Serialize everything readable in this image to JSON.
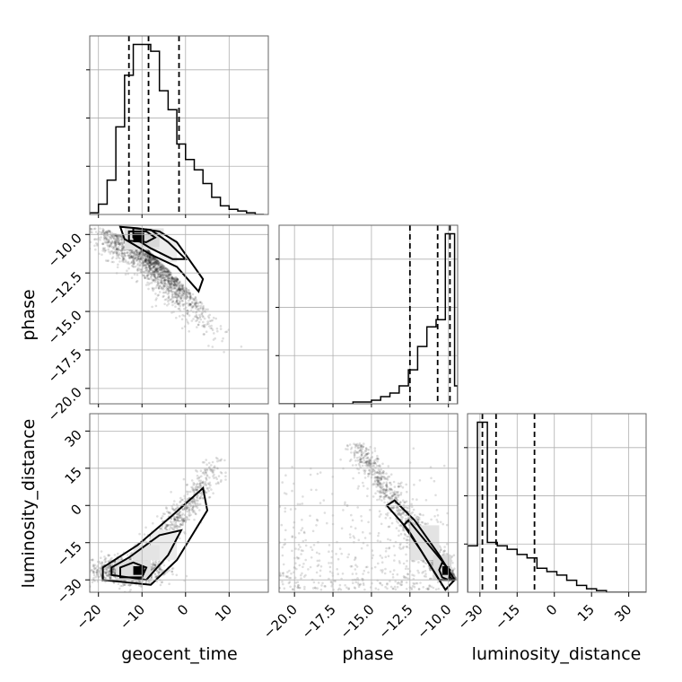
{
  "chart_data": {
    "type": "corner",
    "parameters": [
      {
        "name": "geocent_time",
        "range": [
          -22,
          19
        ],
        "ticks": [
          -20,
          -10,
          0,
          10
        ],
        "quantiles": [
          -13,
          -8.5,
          -1.5
        ]
      },
      {
        "name": "phase",
        "range": [
          -21,
          -9.4
        ],
        "ticks": [
          -20.0,
          -17.5,
          -15.0,
          -12.5,
          -10.0
        ],
        "quantiles": [
          -12.5,
          -10.7,
          -9.9
        ]
      },
      {
        "name": "luminosity_distance",
        "range": [
          -35,
          37
        ],
        "ticks": [
          -30,
          -15,
          0,
          15,
          30
        ],
        "quantiles": [
          -29,
          -23.5,
          -8
        ]
      }
    ],
    "tick_labels": {
      "geocent_time": [
        "−20",
        "−10",
        "0",
        "10"
      ],
      "phase": [
        "−20.0",
        "−17.5",
        "−15.0",
        "−12.5",
        "−10.0"
      ],
      "luminosity_distance": [
        "−30",
        "−15",
        "0",
        "15",
        "30"
      ]
    },
    "histograms": [
      {
        "parameter": "geocent_time",
        "bin_edges": [
          -22,
          -20,
          -18,
          -16,
          -14,
          -12,
          -10,
          -8,
          -6,
          -4,
          -2,
          0,
          2,
          4,
          6,
          8,
          10,
          12,
          14,
          16,
          18
        ],
        "counts": [
          1,
          6,
          20,
          51,
          81,
          99,
          99,
          95,
          72,
          61,
          41,
          32,
          26,
          18,
          10,
          5,
          3,
          2,
          1,
          0
        ]
      },
      {
        "parameter": "phase",
        "bin_edges": [
          -21.0,
          -20.4,
          -19.8,
          -19.2,
          -18.6,
          -18.0,
          -17.4,
          -16.8,
          -16.2,
          -15.6,
          -15.0,
          -14.4,
          -13.8,
          -13.2,
          -12.6,
          -12.0,
          -11.4,
          -10.8,
          -10.2,
          -9.6,
          -9.4
        ],
        "counts": [
          0,
          0,
          0,
          0,
          0,
          0,
          0,
          0,
          1,
          1,
          2,
          4,
          6,
          10,
          19,
          32,
          43,
          47,
          95,
          10
        ]
      },
      {
        "parameter": "luminosity_distance",
        "bin_edges": [
          -35,
          -31,
          -27,
          -23,
          -19,
          -15,
          -11,
          -7,
          -3,
          1,
          5,
          9,
          13,
          17,
          21,
          25,
          29,
          33,
          37
        ],
        "counts": [
          27,
          99,
          29,
          27,
          25,
          22,
          20,
          14,
          12,
          10,
          7,
          4,
          2,
          1,
          0,
          0,
          0,
          0
        ]
      }
    ],
    "contour_panels": [
      {
        "x": "geocent_time",
        "y": "phase",
        "peak": [
          -10,
          -10
        ],
        "correlation": "negative"
      },
      {
        "x": "geocent_time",
        "y": "luminosity_distance",
        "peak": [
          -12,
          -26
        ],
        "correlation": "positive"
      },
      {
        "x": "phase",
        "y": "luminosity_distance",
        "peak": [
          -10,
          -26
        ],
        "correlation": "negative"
      }
    ],
    "quantile_linestyle": "dashed",
    "grid": true
  }
}
